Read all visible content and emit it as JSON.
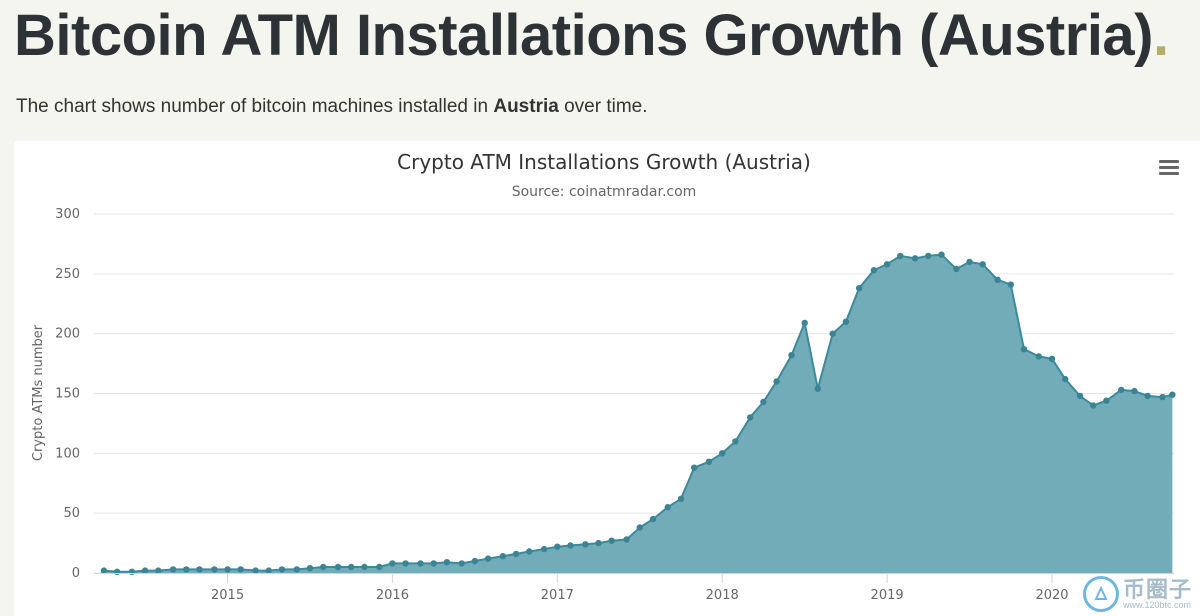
{
  "page": {
    "title": "Bitcoin ATM Installations Growth (Austria)",
    "title_dot": ".",
    "description_before": "The chart shows number of bitcoin machines installed in ",
    "description_country": "Austria",
    "description_after": " over time."
  },
  "chart_data": {
    "type": "area",
    "title": "Crypto ATM Installations Growth (Austria)",
    "subtitle": "Source: coinatmradar.com",
    "xlabel": "",
    "ylabel": "Crypto ATMs number",
    "ylim": [
      0,
      300
    ],
    "yticks": [
      0,
      50,
      100,
      150,
      200,
      250,
      300
    ],
    "xlim": [
      2014.19,
      2020.74
    ],
    "xticks": [
      {
        "value": 2015,
        "label": "2015"
      },
      {
        "value": 2016,
        "label": "2016"
      },
      {
        "value": 2017,
        "label": "2017"
      },
      {
        "value": 2018,
        "label": "2018"
      },
      {
        "value": 2019,
        "label": "2019"
      },
      {
        "value": 2020,
        "label": "2020"
      }
    ],
    "grid": true,
    "legend": "none",
    "colors": {
      "line": "#3c8a9c",
      "fill": "#6aa8b5",
      "marker": "#3a8496",
      "grid": "#e6e6e6"
    },
    "series": [
      {
        "name": "Crypto ATMs",
        "x": [
          2014.25,
          2014.33,
          2014.42,
          2014.5,
          2014.58,
          2014.67,
          2014.75,
          2014.83,
          2014.92,
          2015.0,
          2015.08,
          2015.17,
          2015.25,
          2015.33,
          2015.42,
          2015.5,
          2015.58,
          2015.67,
          2015.75,
          2015.83,
          2015.92,
          2016.0,
          2016.08,
          2016.17,
          2016.25,
          2016.33,
          2016.42,
          2016.5,
          2016.58,
          2016.67,
          2016.75,
          2016.83,
          2016.92,
          2017.0,
          2017.08,
          2017.17,
          2017.25,
          2017.33,
          2017.42,
          2017.5,
          2017.58,
          2017.67,
          2017.75,
          2017.83,
          2017.92,
          2018.0,
          2018.08,
          2018.17,
          2018.25,
          2018.33,
          2018.42,
          2018.5,
          2018.58,
          2018.67,
          2018.75,
          2018.83,
          2018.92,
          2019.0,
          2019.08,
          2019.17,
          2019.25,
          2019.33,
          2019.42,
          2019.5,
          2019.58,
          2019.67,
          2019.75,
          2019.83,
          2019.92,
          2020.0,
          2020.08,
          2020.17,
          2020.25,
          2020.33,
          2020.42,
          2020.5,
          2020.58,
          2020.67,
          2020.73
        ],
        "values": [
          2,
          1,
          1,
          2,
          2,
          3,
          3,
          3,
          3,
          3,
          3,
          2,
          2,
          3,
          3,
          4,
          5,
          5,
          5,
          5,
          5,
          8,
          8,
          8,
          8,
          9,
          8,
          10,
          12,
          14,
          16,
          18,
          20,
          22,
          23,
          24,
          25,
          27,
          28,
          38,
          45,
          55,
          62,
          88,
          93,
          100,
          110,
          130,
          143,
          160,
          182,
          209,
          154,
          200,
          210,
          238,
          253,
          258,
          265,
          263,
          265,
          266,
          254,
          260,
          258,
          245,
          241,
          187,
          181,
          179,
          162,
          148,
          140,
          144,
          153,
          152,
          148,
          147,
          149
        ]
      }
    ]
  },
  "menu": {
    "icon": "menu-icon"
  },
  "watermark": {
    "main": "币圈子",
    "sub": "www.120btc.com"
  }
}
